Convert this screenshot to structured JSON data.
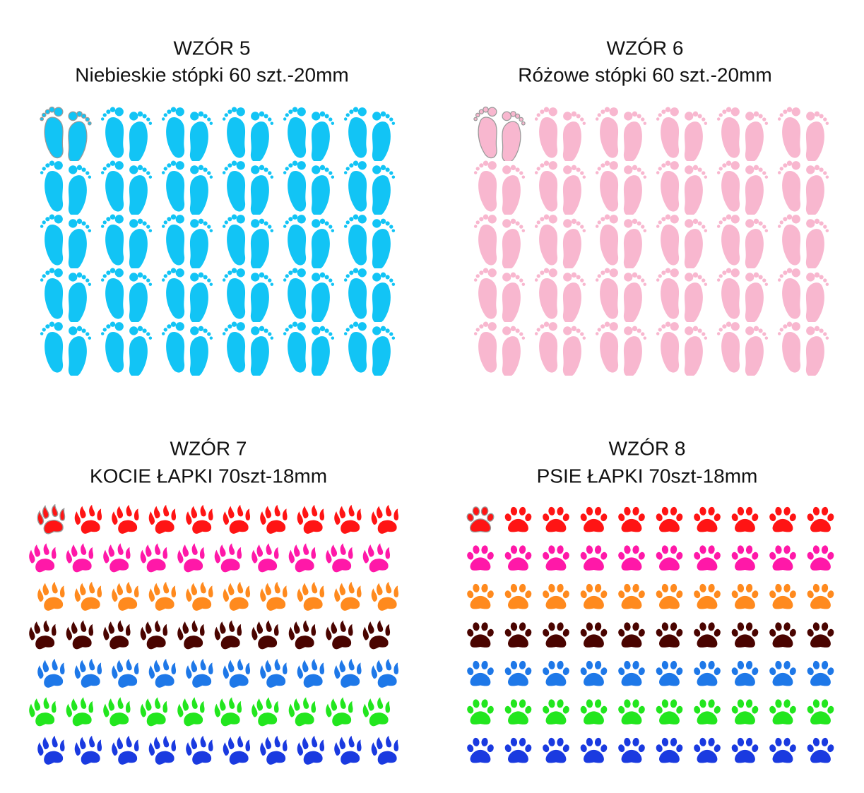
{
  "panels": [
    {
      "title": "WZÓR 5",
      "subtitle": "Niebieskie stópki 60 szt.-20mm"
    },
    {
      "title": "WZÓR 6",
      "subtitle": "Różowe stópki 60 szt.-20mm"
    },
    {
      "title": "WZÓR 7",
      "subtitle": "KOCIE ŁAPKI 70szt-18mm"
    },
    {
      "title": "WZÓR 8",
      "subtitle": "PSIE ŁAPKI 70szt-18mm"
    }
  ]
}
